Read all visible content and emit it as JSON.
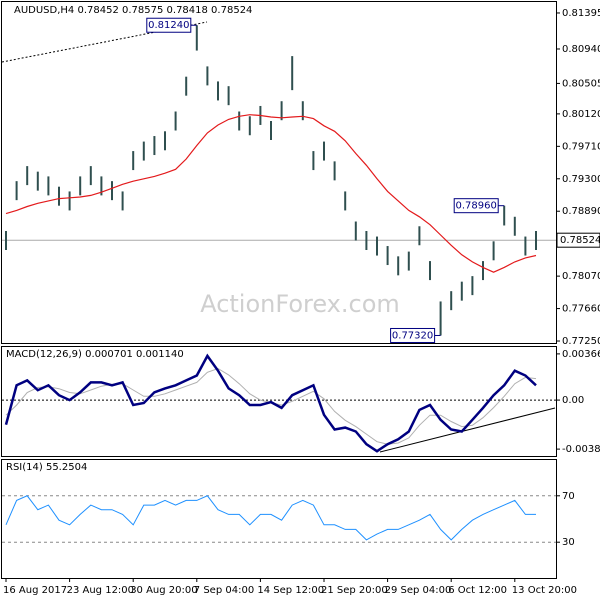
{
  "chart_data": [
    {
      "type": "ohlc",
      "title": "AUDUSD,H4 0.78452 0.78575 0.78418 0.78524",
      "color": "#2f4f4f",
      "watermark": "ActionForex.com",
      "ylim": [
        0.77225,
        0.81521
      ],
      "yticks": [
        0.81395,
        {
          "value": 0.8094,
          "label": "0.80940"
        },
        0.80505,
        {
          "value": 0.8012,
          "label": "0.80120"
        },
        {
          "value": 0.7971,
          "label": "0.79710"
        },
        {
          "value": 0.793,
          "label": "0.79300"
        },
        {
          "value": 0.7889,
          "label": "0.78890"
        },
        {
          "value": 0.7807,
          "label": "0.78070"
        },
        {
          "value": 0.7766,
          "label": "0.77660"
        },
        {
          "value": 0.7725,
          "label": "0.77250"
        }
      ],
      "high": [
        0.7864,
        0.7927,
        0.7946,
        0.7939,
        0.7933,
        0.792,
        0.7914,
        0.7933,
        0.7946,
        0.7933,
        0.7927,
        0.7914,
        0.7965,
        0.7977,
        0.7984,
        0.799,
        0.8015,
        0.8059,
        0.8124,
        0.8072,
        0.8053,
        0.8047,
        0.8015,
        0.8009,
        0.8022,
        0.8003,
        0.8028,
        0.8085,
        0.8028,
        0.7965,
        0.7977,
        0.7952,
        0.7914,
        0.7876,
        0.7864,
        0.7857,
        0.7845,
        0.7832,
        0.7838,
        0.787,
        0.7826,
        0.7775,
        0.7788,
        0.78,
        0.7807,
        0.7826,
        0.7851,
        0.7896,
        0.7882,
        0.7857,
        0.7864
      ],
      "low": [
        0.784,
        0.7903,
        0.7922,
        0.7915,
        0.7909,
        0.7896,
        0.789,
        0.7909,
        0.7922,
        0.7909,
        0.7903,
        0.789,
        0.7941,
        0.7953,
        0.796,
        0.7966,
        0.7991,
        0.8035,
        0.8092,
        0.8048,
        0.8029,
        0.8023,
        0.7991,
        0.7985,
        0.7998,
        0.7979,
        0.8004,
        0.8042,
        0.8004,
        0.7941,
        0.7953,
        0.7928,
        0.789,
        0.7852,
        0.784,
        0.7833,
        0.7821,
        0.7808,
        0.7814,
        0.7846,
        0.7802,
        0.7732,
        0.7764,
        0.7776,
        0.7783,
        0.7802,
        0.7827,
        0.7871,
        0.7858,
        0.7833,
        0.784
      ],
      "ma": {
        "color": "#e31a1c",
        "values": [
          0.7886,
          0.789,
          0.7895,
          0.7899,
          0.7902,
          0.7905,
          0.7906,
          0.7907,
          0.7909,
          0.7913,
          0.7918,
          0.7923,
          0.7927,
          0.793,
          0.7933,
          0.7937,
          0.7942,
          0.7955,
          0.7972,
          0.7988,
          0.7998,
          0.8005,
          0.8009,
          0.8011,
          0.801,
          0.8008,
          0.8007,
          0.8008,
          0.8009,
          0.8006,
          0.7997,
          0.799,
          0.7978,
          0.7962,
          0.7947,
          0.793,
          0.7914,
          0.7902,
          0.789,
          0.7882,
          0.7872,
          0.7859,
          0.7846,
          0.7834,
          0.7825,
          0.7818,
          0.7812,
          0.7818,
          0.7825,
          0.783,
          0.7833
        ]
      },
      "last": {
        "value": 0.78524,
        "label": "0.78524"
      },
      "annotations": [
        {
          "value": 0.8124,
          "label": "0.81240"
        },
        {
          "value": 0.7896,
          "label": "0.78960"
        },
        {
          "value": 0.7732,
          "label": "0.77320"
        }
      ]
    },
    {
      "type": "macd",
      "title": "MACD(12,26,9) 0.000701 0.001140",
      "color": "#000080",
      "ylim": [
        -0.004354,
        0.004129
      ],
      "yticks": [
        0.003662,
        {
          "value": 0,
          "label": "0.00"
        },
        -0.003887
      ],
      "zero_line": true,
      "values": [
        -0.00195,
        0.00117,
        0.00156,
        0.00078,
        0.00117,
        0.00039,
        0,
        0.00062,
        0.0014,
        0.0014,
        0.00117,
        0.0014,
        -0.00039,
        -0.00023,
        0.00062,
        0.00093,
        0.00117,
        0.00156,
        0.00195,
        0.0035,
        0.00233,
        0.00093,
        0.00039,
        -0.00039,
        -0.00039,
        -0.00016,
        -0.00062,
        0.00039,
        0.00078,
        0.00117,
        -0.00117,
        -0.00233,
        -0.00218,
        -0.00249,
        -0.0035,
        -0.00405,
        -0.0035,
        -0.00311,
        -0.00249,
        -0.00078,
        -0.00039,
        -0.00156,
        -0.00233,
        -0.00249,
        -0.00156,
        -0.00062,
        0.00039,
        0.00117,
        0.00233,
        0.00195,
        0.00117
      ],
      "signal": {
        "color": "#b0b0b0",
        "values": [
          -0.0012,
          -0.0004,
          0.0006,
          0.001,
          0.00105,
          0.0009,
          0.0006,
          0.0005,
          0.0008,
          0.0011,
          0.00125,
          0.0013,
          0.0008,
          0.0003,
          0.0003,
          0.0005,
          0.0008,
          0.0011,
          0.0014,
          0.0022,
          0.0025,
          0.002,
          0.0013,
          0.0005,
          0,
          -0.0002,
          -0.0004,
          -0.0001,
          0.0003,
          0.0007,
          0.0001,
          -0.0009,
          -0.0016,
          -0.0021,
          -0.0027,
          -0.0033,
          -0.0035,
          -0.0034,
          -0.003,
          -0.002,
          -0.0012,
          -0.0012,
          -0.0017,
          -0.0021,
          -0.002,
          -0.0014,
          -0.0006,
          0.0003,
          0.0013,
          0.0018,
          0.0017
        ]
      }
    },
    {
      "type": "rsi",
      "title": "RSI(14) 55.2504",
      "color": "#1e90ff",
      "ylim": [
        0,
        100
      ],
      "yticks": [
        30,
        70
      ],
      "grid": true,
      "values": [
        45,
        66,
        70,
        58,
        62,
        49,
        45,
        54,
        62,
        58,
        58,
        54,
        45,
        62,
        62,
        66,
        62,
        66,
        66,
        70,
        58,
        54,
        54,
        45,
        54,
        54,
        49,
        62,
        66,
        62,
        45,
        45,
        41,
        41,
        32,
        37,
        41,
        41,
        45,
        49,
        54,
        41,
        32,
        41,
        49,
        54,
        58,
        62,
        66,
        54,
        54
      ],
      "categories": [
        "16 Aug 2017",
        null,
        null,
        null,
        null,
        null,
        "23 Aug 12:00",
        null,
        null,
        null,
        null,
        null,
        "30 Aug 20:00",
        null,
        null,
        null,
        null,
        null,
        "7 Sep 04:00",
        null,
        null,
        null,
        null,
        null,
        "14 Sep 12:00",
        null,
        null,
        null,
        null,
        null,
        "21 Sep 20:00",
        null,
        null,
        null,
        null,
        null,
        "29 Sep 04:00",
        null,
        null,
        null,
        null,
        null,
        "6 Oct 12:00",
        null,
        null,
        null,
        null,
        null,
        "13 Oct 20:00",
        null,
        null
      ]
    }
  ]
}
